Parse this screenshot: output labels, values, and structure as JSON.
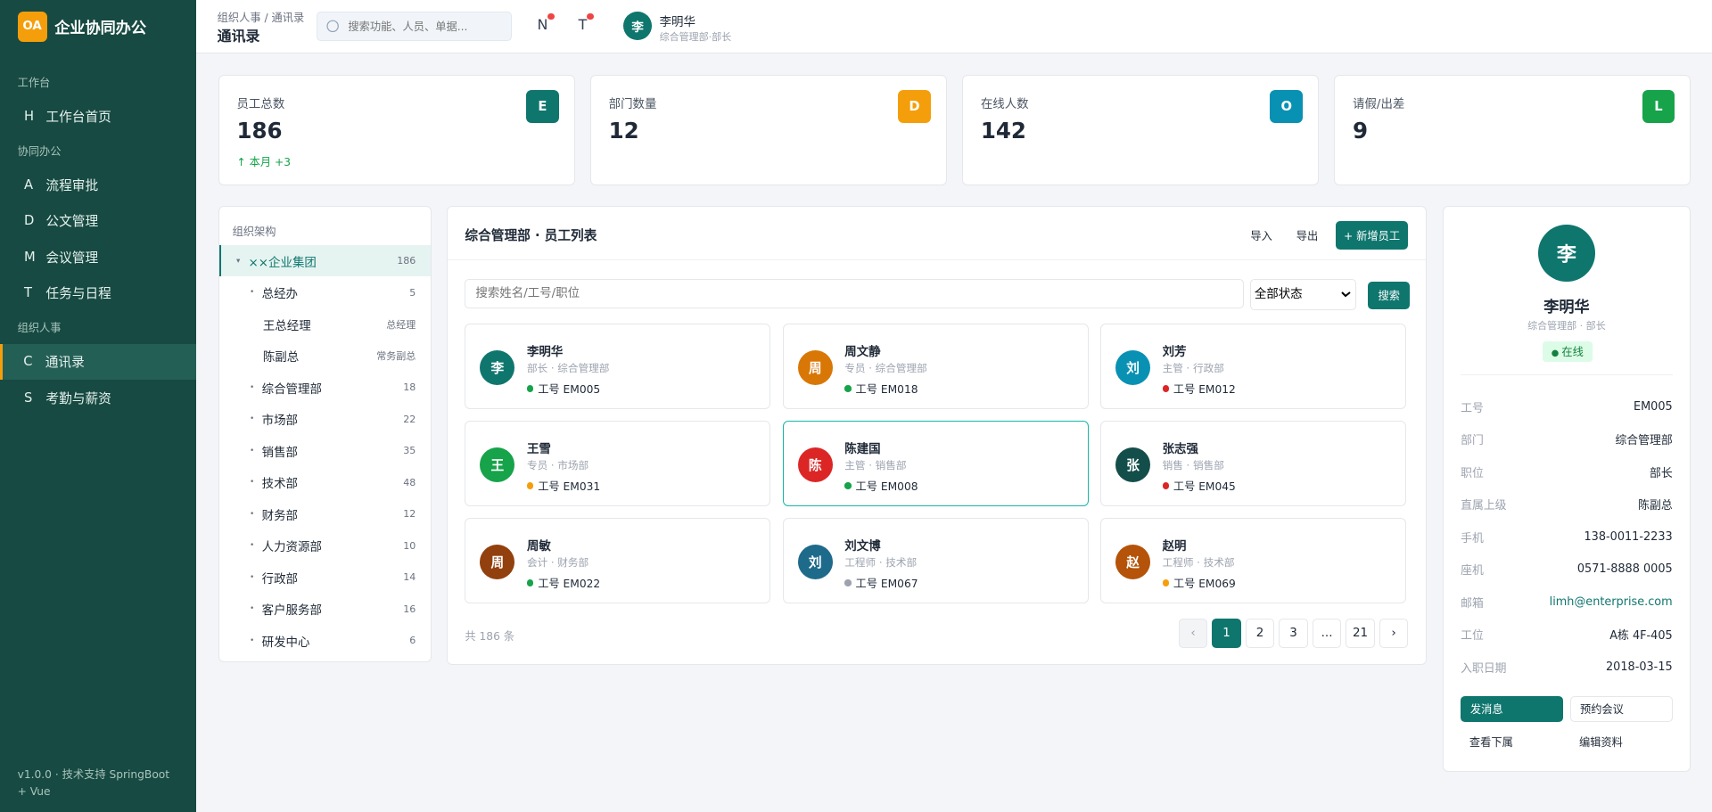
{
  "brand": {
    "logo": "OA",
    "name": "企业协同办公"
  },
  "nav": [
    {
      "group": "工作台",
      "items": [
        {
          "icon": "H",
          "label": "工作台首页"
        }
      ]
    },
    {
      "group": "协同办公",
      "items": [
        {
          "icon": "A",
          "label": "流程审批"
        },
        {
          "icon": "D",
          "label": "公文管理"
        },
        {
          "icon": "M",
          "label": "会议管理"
        },
        {
          "icon": "T",
          "label": "任务与日程"
        }
      ]
    },
    {
      "group": "组织人事",
      "items": [
        {
          "icon": "C",
          "label": "通讯录",
          "active": true
        },
        {
          "icon": "S",
          "label": "考勤与薪资"
        }
      ]
    }
  ],
  "footer": "v1.0.0 · 技术支持 SpringBoot + Vue",
  "header": {
    "breadcrumb": "组织人事 / 通讯录",
    "title": "通讯录",
    "search_placeholder": "搜索功能、人员、单据...",
    "icons": [
      "N",
      "T"
    ],
    "user": {
      "avatar": "李",
      "name": "李明华",
      "role": "综合管理部·部长"
    }
  },
  "stats": [
    {
      "label": "员工总数",
      "value": 186,
      "icon": "E",
      "color": "#0f766e",
      "note": "↑ 本月 +3"
    },
    {
      "label": "部门数量",
      "value": 12,
      "icon": "D",
      "color": "#f59e0b"
    },
    {
      "label": "在线人数",
      "value": 142,
      "icon": "O",
      "color": "#0891b2"
    },
    {
      "label": "请假/出差",
      "value": 9,
      "icon": "L",
      "color": "#16a34a"
    }
  ],
  "tree": {
    "title": "组织架构",
    "nodes": [
      {
        "label": "××企业集团",
        "count": 186,
        "active": true,
        "children": [
          {
            "label": "总经办",
            "count": 5,
            "children": [
              {
                "label": "王总经理",
                "role": "总经理"
              },
              {
                "label": "陈副总",
                "role": "常务副总"
              }
            ]
          },
          {
            "label": "综合管理部",
            "count": 18
          },
          {
            "label": "市场部",
            "count": 22
          },
          {
            "label": "销售部",
            "count": 35
          },
          {
            "label": "技术部",
            "count": 48
          },
          {
            "label": "财务部",
            "count": 12
          },
          {
            "label": "人力资源部",
            "count": 10
          },
          {
            "label": "行政部",
            "count": 14
          },
          {
            "label": "客户服务部",
            "count": 16
          },
          {
            "label": "研发中心",
            "count": 6
          }
        ]
      }
    ]
  },
  "list": {
    "title": "综合管理部 · 员工列表",
    "actions": [
      "导入",
      "导出"
    ],
    "add_button": "+ 新增员工",
    "search_placeholder": "搜索姓名/工号/职位",
    "status_filter": "全部状态",
    "search_button": "搜索",
    "employees": [
      {
        "avatar": "李",
        "color": "#0f766e",
        "name": "李明华",
        "title": "部长 · 综合管理部",
        "id": "工号 EM005",
        "status_color": "#16a34a"
      },
      {
        "avatar": "周",
        "color": "#d97706",
        "name": "周文静",
        "title": "专员 · 综合管理部",
        "id": "工号 EM018",
        "status_color": "#16a34a"
      },
      {
        "avatar": "刘",
        "color": "#0891b2",
        "name": "刘芳",
        "title": "主管 · 行政部",
        "id": "工号 EM012",
        "status_color": "#dc2626"
      },
      {
        "avatar": "王",
        "color": "#16a34a",
        "name": "王雪",
        "title": "专员 · 市场部",
        "id": "工号 EM031",
        "status_color": "#f59e0b"
      },
      {
        "avatar": "陈",
        "color": "#dc2626",
        "name": "陈建国",
        "title": "主管 · 销售部",
        "id": "工号 EM008",
        "status_color": "#16a34a",
        "selected": true
      },
      {
        "avatar": "张",
        "color": "#134e4a",
        "name": "张志强",
        "title": "销售 · 销售部",
        "id": "工号 EM045",
        "status_color": "#dc2626"
      },
      {
        "avatar": "周",
        "color": "#92400e",
        "name": "周敏",
        "title": "会计 · 财务部",
        "id": "工号 EM022",
        "status_color": "#16a34a"
      },
      {
        "avatar": "刘",
        "color": "#1e6a8a",
        "name": "刘文博",
        "title": "工程师 · 技术部",
        "id": "工号 EM067",
        "status_color": "#9ca3af"
      },
      {
        "avatar": "赵",
        "color": "#b45309",
        "name": "赵明",
        "title": "工程师 · 技术部",
        "id": "工号 EM069",
        "status_color": "#f59e0b"
      }
    ],
    "total": "共 186 条",
    "pagination": {
      "prev": "‹",
      "pages": [
        1,
        2,
        3,
        "...",
        21
      ],
      "next": "›",
      "current": 1
    }
  },
  "detail": {
    "avatar": "李",
    "name": "李明华",
    "subtitle": "综合管理部 · 部长",
    "status": "在线",
    "fields": [
      [
        "工号",
        "EM005"
      ],
      [
        "部门",
        "综合管理部"
      ],
      [
        "职位",
        "部长"
      ],
      [
        "直属上级",
        "陈副总"
      ],
      [
        "手机",
        "138-0011-2233"
      ],
      [
        "座机",
        "0571-8888 0005"
      ],
      [
        "邮箱",
        "limh@enterprise.com"
      ],
      [
        "工位",
        "A栋 4F-405"
      ],
      [
        "入职日期",
        "2018-03-15"
      ]
    ],
    "buttons": [
      "发消息",
      "预约会议",
      "查看下属",
      "编辑资料"
    ]
  }
}
